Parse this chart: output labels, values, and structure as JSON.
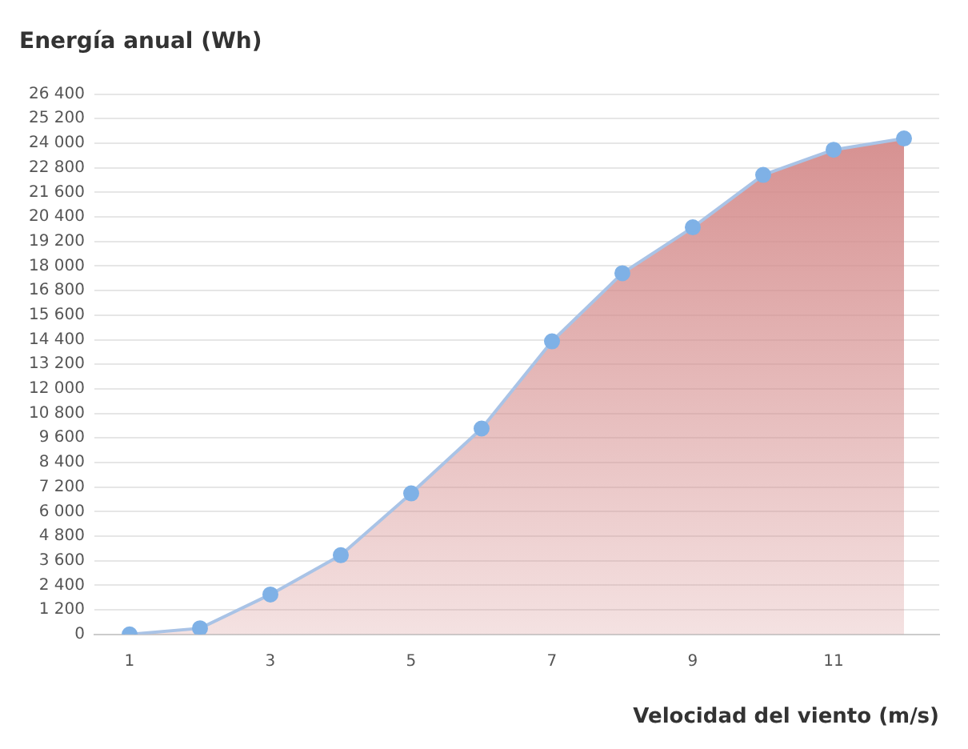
{
  "chart_data": {
    "type": "area",
    "title": "Energía anual (Wh)",
    "xlabel": "Velocidad del viento (m/s)",
    "categories": [
      "1",
      null,
      "3",
      null,
      "5",
      null,
      "7",
      null,
      "9",
      null,
      "11",
      null
    ],
    "series": [
      {
        "color": "#d48a8a",
        "values": [
          0,
          300,
          1950,
          3870,
          6890,
          10060,
          14320,
          17650,
          19890,
          22450,
          23680,
          24230
        ]
      }
    ],
    "ylim": [
      0,
      26400
    ],
    "yticks": [
      {
        "value": 0,
        "label": "0"
      },
      {
        "value": 1200,
        "label": "1 200"
      },
      {
        "value": 2400,
        "label": "2 400"
      },
      {
        "value": 3600,
        "label": "3 600"
      },
      {
        "value": 4800,
        "label": "4 800"
      },
      {
        "value": 6000,
        "label": "6 000"
      },
      {
        "value": 7200,
        "label": "7 200"
      },
      {
        "value": 8400,
        "label": "8 400"
      },
      {
        "value": 9600,
        "label": "9 600"
      },
      {
        "value": 10800,
        "label": "10 800"
      },
      {
        "value": 12000,
        "label": "12 000"
      },
      {
        "value": 13200,
        "label": "13 200"
      },
      {
        "value": 14400,
        "label": "14 400"
      },
      {
        "value": 15600,
        "label": "15 600"
      },
      {
        "value": 16800,
        "label": "16 800"
      },
      {
        "value": 18000,
        "label": "18 000"
      },
      {
        "value": 19200,
        "label": "19 200"
      },
      {
        "value": 20400,
        "label": "20 400"
      },
      {
        "value": 21600,
        "label": "21 600"
      },
      {
        "value": 22800,
        "label": "22 800"
      },
      {
        "value": 24000,
        "label": "24 000"
      },
      {
        "value": 25200,
        "label": "25 200"
      },
      {
        "value": 26400,
        "label": "26 400"
      }
    ],
    "grid": "y",
    "marker": "circle",
    "legend": false
  }
}
